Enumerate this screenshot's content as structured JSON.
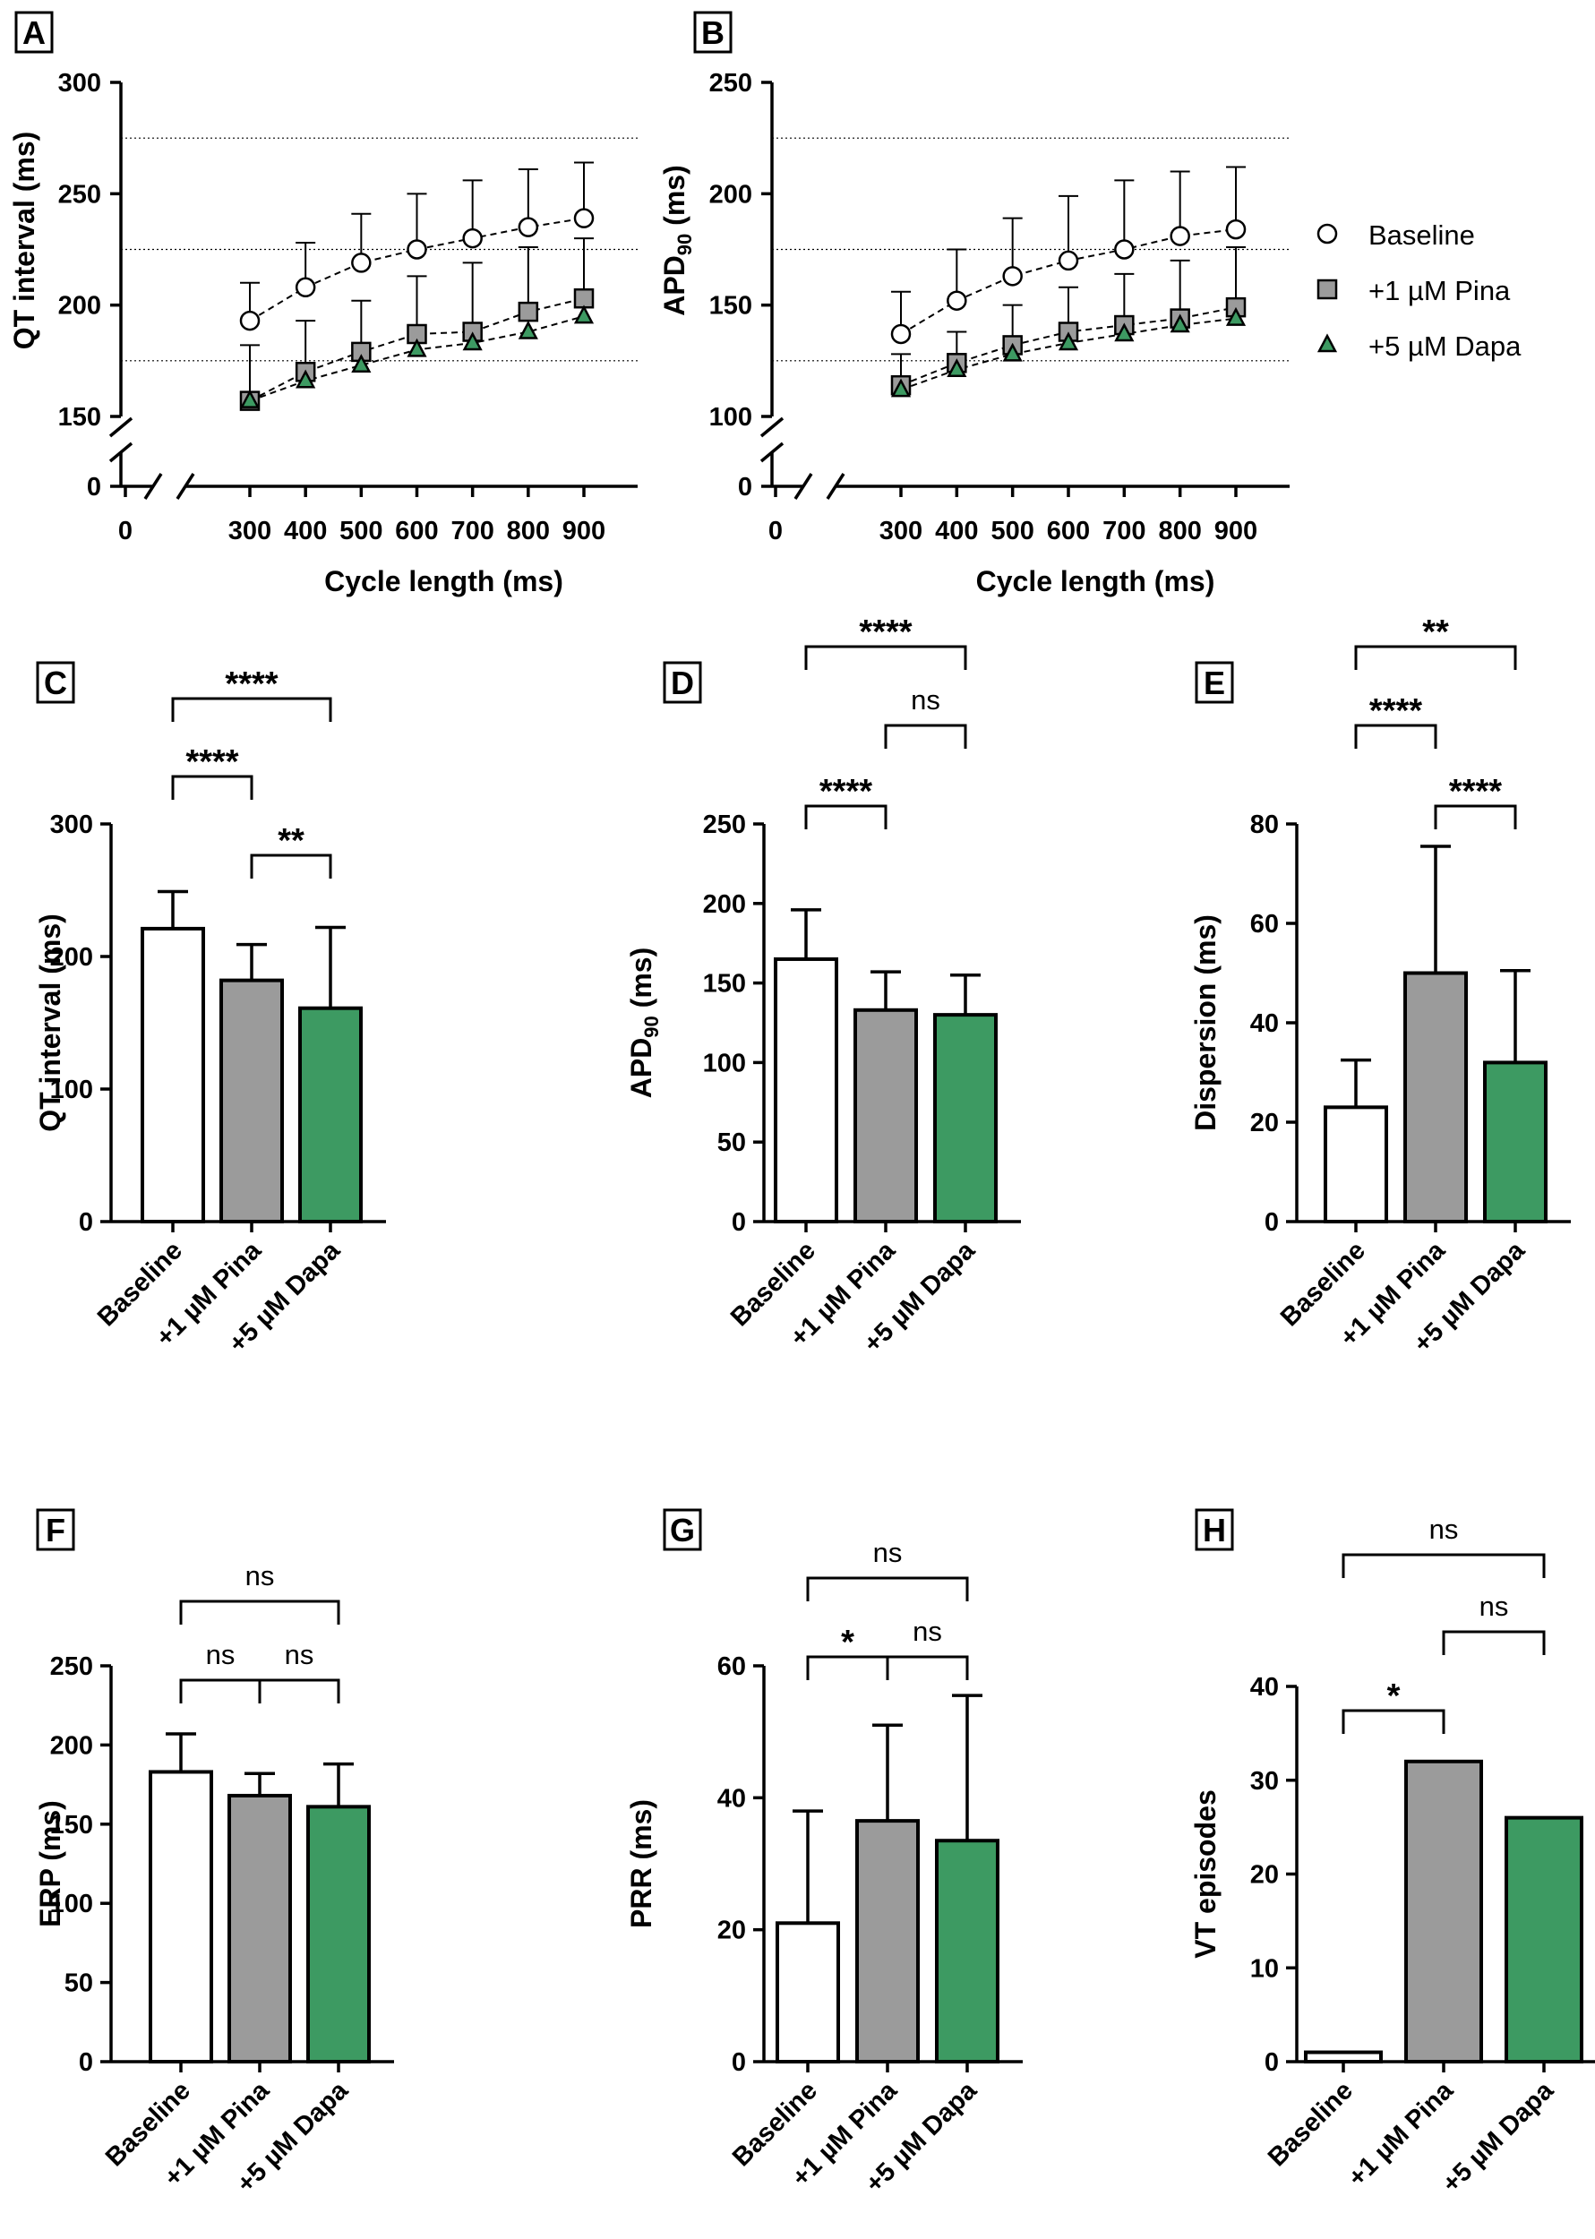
{
  "figure": {
    "colors": {
      "baseline": "#ffffff",
      "pina": "#9b9b9b",
      "dapa": "#3d9a62",
      "line": "#000000"
    }
  },
  "legend": {
    "items": [
      {
        "label": "Baseline",
        "marker": "circle",
        "color": "#ffffff"
      },
      {
        "label": "+1 µM Pina",
        "marker": "square",
        "color": "#9b9b9b"
      },
      {
        "label": "+5 µM Dapa",
        "marker": "triangle",
        "color": "#3d9a62"
      }
    ]
  },
  "chart_data": [
    {
      "panel": "A",
      "type": "line",
      "xlabel": "Cycle length (ms)",
      "ylabel": "QT interval (ms)",
      "x": [
        300,
        400,
        500,
        600,
        700,
        800,
        900
      ],
      "x_ticks": [
        "0",
        "300",
        "400",
        "500",
        "600",
        "700",
        "800",
        "900"
      ],
      "y_ticks": [
        "0",
        "150",
        "200",
        "250",
        "300"
      ],
      "ylim": [
        150,
        300
      ],
      "axis_break": true,
      "reference_lines": [
        175,
        225,
        275
      ],
      "series": [
        {
          "name": "Baseline",
          "values": [
            193,
            208,
            219,
            225,
            230,
            235,
            239
          ],
          "errors": [
            17,
            20,
            22,
            25,
            26,
            26,
            25
          ]
        },
        {
          "name": "+1 µM Pina",
          "values": [
            157,
            170,
            179,
            187,
            188,
            197,
            203
          ],
          "errors": [
            25,
            23,
            23,
            26,
            31,
            29,
            27
          ]
        },
        {
          "name": "+5 µM Dapa",
          "values": [
            157,
            166,
            173,
            180,
            183,
            188,
            195
          ],
          "errors": [
            0,
            0,
            0,
            0,
            0,
            0,
            0
          ]
        }
      ]
    },
    {
      "panel": "B",
      "type": "line",
      "xlabel": "Cycle length (ms)",
      "ylabel": "APD90 (ms)",
      "x": [
        300,
        400,
        500,
        600,
        700,
        800,
        900
      ],
      "x_ticks": [
        "0",
        "300",
        "400",
        "500",
        "600",
        "700",
        "800",
        "900"
      ],
      "y_ticks": [
        "0",
        "100",
        "150",
        "200",
        "250"
      ],
      "ylim": [
        100,
        250
      ],
      "axis_break": true,
      "reference_lines": [
        125,
        175,
        225
      ],
      "series": [
        {
          "name": "Baseline",
          "values": [
            137,
            152,
            163,
            170,
            175,
            181,
            184
          ],
          "errors": [
            19,
            23,
            26,
            29,
            31,
            29,
            28
          ]
        },
        {
          "name": "+1 µM Pina",
          "values": [
            114,
            124,
            132,
            138,
            141,
            144,
            149
          ],
          "errors": [
            14,
            14,
            18,
            20,
            23,
            26,
            27
          ]
        },
        {
          "name": "+5 µM Dapa",
          "values": [
            112,
            121,
            128,
            133,
            137,
            141,
            144
          ],
          "errors": [
            0,
            0,
            0,
            0,
            0,
            0,
            0
          ]
        }
      ]
    },
    {
      "panel": "C",
      "type": "bar",
      "ylabel": "QT interval (ms)",
      "categories": [
        "Baseline",
        "+1 µM Pina",
        "+5 µM Dapa"
      ],
      "values": [
        221,
        182,
        161
      ],
      "errors": [
        28,
        27,
        61
      ],
      "ylim": [
        0,
        300
      ],
      "y_ticks": [
        "0",
        "100",
        "200",
        "300"
      ],
      "significance": [
        {
          "from": 0,
          "to": 2,
          "label": "****"
        },
        {
          "from": 0,
          "to": 1,
          "label": "****"
        },
        {
          "from": 1,
          "to": 2,
          "label": "**"
        }
      ]
    },
    {
      "panel": "D",
      "type": "bar",
      "ylabel": "APD90 (ms)",
      "categories": [
        "Baseline",
        "+1 µM Pina",
        "+5 µM Dapa"
      ],
      "values": [
        165,
        133,
        130
      ],
      "errors": [
        31,
        24,
        25
      ],
      "ylim": [
        0,
        250
      ],
      "y_ticks": [
        "0",
        "50",
        "100",
        "150",
        "200",
        "250"
      ],
      "significance": [
        {
          "from": 0,
          "to": 2,
          "label": "****"
        },
        {
          "from": 1,
          "to": 2,
          "label": "ns"
        },
        {
          "from": 0,
          "to": 1,
          "label": "****"
        }
      ]
    },
    {
      "panel": "E",
      "type": "bar",
      "ylabel": "Dispersion (ms)",
      "categories": [
        "Baseline",
        "+1 µM Pina",
        "+5 µM Dapa"
      ],
      "values": [
        23,
        50,
        32
      ],
      "errors": [
        9.5,
        25.5,
        18.5
      ],
      "ylim": [
        0,
        80
      ],
      "y_ticks": [
        "0",
        "20",
        "40",
        "60",
        "80"
      ],
      "significance": [
        {
          "from": 0,
          "to": 2,
          "label": "**"
        },
        {
          "from": 0,
          "to": 1,
          "label": "****"
        },
        {
          "from": 1,
          "to": 2,
          "label": "****"
        }
      ]
    },
    {
      "panel": "F",
      "type": "bar",
      "ylabel": "ERP (ms)",
      "categories": [
        "Baseline",
        "+1 µM Pina",
        "+5 µM Dapa"
      ],
      "values": [
        183,
        168,
        161
      ],
      "errors": [
        24,
        14,
        27
      ],
      "ylim": [
        0,
        250
      ],
      "y_ticks": [
        "0",
        "50",
        "100",
        "150",
        "200",
        "250"
      ],
      "significance": [
        {
          "from": 0,
          "to": 2,
          "label": "ns"
        },
        {
          "from": 0,
          "to": 1,
          "label": "ns"
        },
        {
          "from": 1,
          "to": 2,
          "label": "ns"
        }
      ]
    },
    {
      "panel": "G",
      "type": "bar",
      "ylabel": "PRR (ms)",
      "categories": [
        "Baseline",
        "+1 µM Pina",
        "+5 µM Dapa"
      ],
      "values": [
        21,
        36.5,
        33.5
      ],
      "errors": [
        17,
        14.5,
        22
      ],
      "ylim": [
        0,
        60
      ],
      "y_ticks": [
        "0",
        "20",
        "40",
        "60"
      ],
      "significance": [
        {
          "from": 0,
          "to": 2,
          "label": "ns"
        },
        {
          "from": 0,
          "to": 1,
          "label": "*"
        },
        {
          "from": 1,
          "to": 2,
          "label": "ns"
        }
      ]
    },
    {
      "panel": "H",
      "type": "bar",
      "ylabel": "VT episodes",
      "categories": [
        "Baseline",
        "+1 µM Pina",
        "+5 µM Dapa"
      ],
      "values": [
        1,
        32,
        26
      ],
      "errors": [
        0,
        0,
        0
      ],
      "ylim": [
        0,
        40
      ],
      "y_ticks": [
        "0",
        "10",
        "20",
        "30",
        "40"
      ],
      "significance": [
        {
          "from": 0,
          "to": 2,
          "label": "ns"
        },
        {
          "from": 1,
          "to": 2,
          "label": "ns"
        },
        {
          "from": 0,
          "to": 1,
          "label": "*"
        }
      ]
    }
  ]
}
